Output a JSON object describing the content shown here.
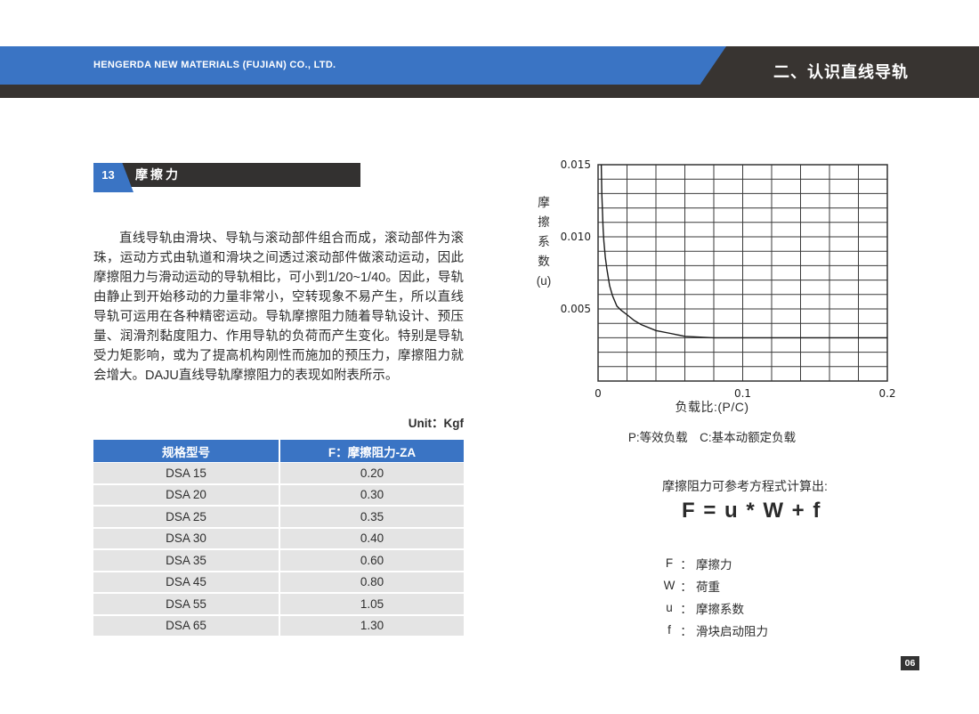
{
  "page": {
    "header": {
      "company": "HENGERDA NEW MATERIALS (FUJIAN) CO., LTD.",
      "section_title": "二、认识直线导轨"
    },
    "section": {
      "number": "13",
      "title": "摩擦力"
    },
    "paragraph": "直线导轨由滑块、导轨与滚动部件组合而成，滚动部件为滚珠，运动方式由轨道和滑块之间透过滚动部件做滚动运动，因此摩擦阻力与滑动运动的导轨相比，可小到1/20~1/40。因此，导轨由静止到开始移动的力量非常小，空转现象不易产生，所以直线导轨可运用在各种精密运动。导轨摩擦阻力随着导轨设计、预压量、润滑剂黏度阻力、作用导轨的负荷而产生变化。特别是导轨受力矩影响，或为了提高机构刚性而施加的预压力，摩擦阻力就会增大。DAJU直线导轨摩擦阻力的表现如附表所示。",
    "unit_label": "Unit：Kgf",
    "table": {
      "headers": [
        "规格型号",
        "F：摩擦阻力-ZA"
      ],
      "rows": [
        [
          "DSA 15",
          "0.20"
        ],
        [
          "DSA 20",
          "0.30"
        ],
        [
          "DSA 25",
          "0.35"
        ],
        [
          "DSA 30",
          "0.40"
        ],
        [
          "DSA 35",
          "0.60"
        ],
        [
          "DSA 45",
          "0.80"
        ],
        [
          "DSA 55",
          "1.05"
        ],
        [
          "DSA 65",
          "1.30"
        ]
      ]
    },
    "formula": {
      "intro": "摩擦阻力可参考方程式计算出:",
      "equation": "F = u * W + f",
      "separator": "：",
      "definitions": [
        {
          "symbol": "F",
          "term": "摩擦力"
        },
        {
          "symbol": "W",
          "term": "荷重"
        },
        {
          "symbol": "u",
          "term": "摩擦系数"
        },
        {
          "symbol": "f",
          "term": "滑块启动阻力"
        }
      ]
    },
    "page_number": "06",
    "colors": {
      "accent_blue": "#3a74c4",
      "dark": "#383431",
      "row_gray": "#e4e4e4"
    }
  },
  "chart_data": {
    "type": "line",
    "title": "",
    "ylabel": "摩\n擦\n系\n数\n(u)",
    "xlabel": "负载比:(P/C)",
    "caption": "P:等效负载　C:基本动额定负载",
    "xlim": [
      0,
      0.2
    ],
    "ylim": [
      0,
      0.015
    ],
    "grid": true,
    "grid_x_step": 0.02,
    "grid_y_step": 0.001,
    "xticks": [
      {
        "v": 0,
        "label": "0"
      },
      {
        "v": 0.1,
        "label": "0.1"
      },
      {
        "v": 0.2,
        "label": "0.2"
      }
    ],
    "yticks": [
      {
        "v": 0.005,
        "label": "0.005"
      },
      {
        "v": 0.01,
        "label": "0.010"
      },
      {
        "v": 0.015,
        "label": "0.015"
      }
    ],
    "series": [
      {
        "name": "摩擦系数曲线",
        "points": [
          [
            0.0022,
            0.015
          ],
          [
            0.0026,
            0.013
          ],
          [
            0.003,
            0.0118
          ],
          [
            0.0035,
            0.0105
          ],
          [
            0.004,
            0.0097
          ],
          [
            0.005,
            0.0086
          ],
          [
            0.006,
            0.0078
          ],
          [
            0.008,
            0.0066
          ],
          [
            0.01,
            0.0059
          ],
          [
            0.013,
            0.0052
          ],
          [
            0.016,
            0.0049
          ],
          [
            0.02,
            0.0046
          ],
          [
            0.025,
            0.0042
          ],
          [
            0.03,
            0.0039
          ],
          [
            0.04,
            0.0035
          ],
          [
            0.05,
            0.0033
          ],
          [
            0.06,
            0.0031
          ],
          [
            0.08,
            0.003
          ],
          [
            0.1,
            0.003
          ],
          [
            0.15,
            0.003
          ],
          [
            0.2,
            0.003
          ]
        ]
      }
    ]
  }
}
